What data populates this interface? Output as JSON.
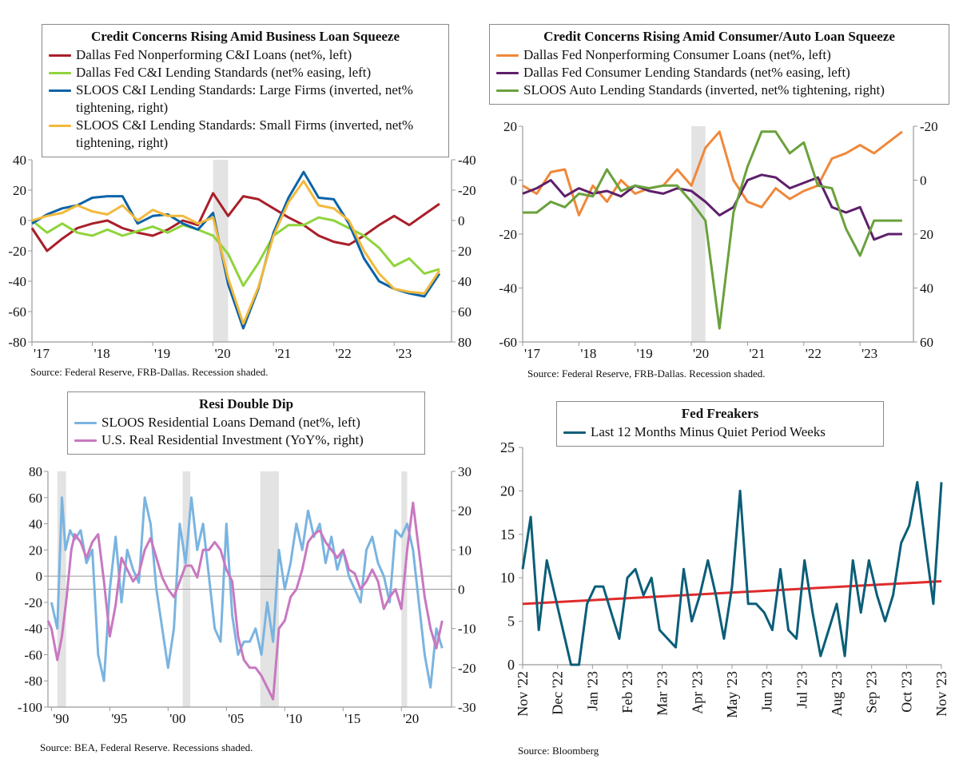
{
  "chart_data": [
    {
      "type": "line",
      "title": "Credit Concerns Rising Amid Business Loan Squeeze",
      "source": "Source: Federal Reserve, FRB-Dallas. Recession shaded.",
      "x_ticks": [
        "'17",
        "'18",
        "'19",
        "'20",
        "'21",
        "'22",
        "'23"
      ],
      "x_range": [
        2017.0,
        2023.95
      ],
      "y_left": {
        "range": [
          -80,
          40
        ],
        "ticks": [
          "40",
          "20",
          "0",
          "-20",
          "-40",
          "-60",
          "-80"
        ]
      },
      "y_right": {
        "range_top_to_bottom": [
          -40,
          80
        ],
        "ticks": [
          "-40",
          "-20",
          "0",
          "20",
          "40",
          "60",
          "80"
        ]
      },
      "recession": [
        [
          2020.0,
          2020.25
        ]
      ],
      "series": [
        {
          "name": "Dallas Fed Nonperforming C&I Loans (net%, left)",
          "axis": "left",
          "color": "#a91f2a",
          "x": [
            2017.0,
            2017.25,
            2017.5,
            2017.75,
            2018.0,
            2018.25,
            2018.5,
            2018.75,
            2019.0,
            2019.25,
            2019.5,
            2019.75,
            2020.0,
            2020.25,
            2020.5,
            2020.75,
            2021.0,
            2021.25,
            2021.5,
            2021.75,
            2022.0,
            2022.25,
            2022.5,
            2022.75,
            2023.0,
            2023.25,
            2023.5,
            2023.75
          ],
          "y": [
            -5,
            -20,
            -12,
            -5,
            -2,
            0,
            -5,
            -8,
            -10,
            -6,
            0,
            -3,
            18,
            3,
            16,
            14,
            8,
            2,
            -3,
            -10,
            -14,
            -16,
            -10,
            -3,
            3,
            -3,
            4,
            11
          ]
        },
        {
          "name": "Dallas Fed C&I Lending Standards (net% easing, left)",
          "axis": "left",
          "color": "#8fd43c",
          "x": [
            2017.0,
            2017.25,
            2017.5,
            2017.75,
            2018.0,
            2018.25,
            2018.5,
            2018.75,
            2019.0,
            2019.25,
            2019.5,
            2019.75,
            2020.0,
            2020.25,
            2020.5,
            2020.75,
            2021.0,
            2021.25,
            2021.5,
            2021.75,
            2022.0,
            2022.25,
            2022.5,
            2022.75,
            2023.0,
            2023.25,
            2023.5,
            2023.75
          ],
          "y": [
            0,
            -8,
            -2,
            -8,
            -10,
            -6,
            -10,
            -7,
            -4,
            -8,
            -3,
            -6,
            -10,
            -22,
            -43,
            -28,
            -10,
            -3,
            -3,
            2,
            0,
            -5,
            -10,
            -18,
            -30,
            -25,
            -35,
            -32
          ]
        },
        {
          "name": "SLOOS C&I Lending Standards: Large Firms (inverted, net% tightening, right)",
          "axis": "right",
          "color": "#0b63a8",
          "x": [
            2017.0,
            2017.25,
            2017.5,
            2017.75,
            2018.0,
            2018.25,
            2018.5,
            2018.75,
            2019.0,
            2019.25,
            2019.5,
            2019.75,
            2020.0,
            2020.25,
            2020.5,
            2020.75,
            2021.0,
            2021.25,
            2021.5,
            2021.75,
            2022.0,
            2022.25,
            2022.5,
            2022.75,
            2023.0,
            2023.25,
            2023.5,
            2023.75
          ],
          "y": [
            2,
            -4,
            -8,
            -10,
            -15,
            -16,
            -16,
            2,
            -3,
            -4,
            2,
            6,
            -5,
            42,
            71,
            45,
            8,
            -15,
            -32,
            -15,
            -14,
            2,
            25,
            40,
            45,
            48,
            50,
            35
          ]
        },
        {
          "name": "SLOOS C&I Lending Standards: Small Firms (inverted, net% tightening, right)",
          "axis": "right",
          "color": "#f2b93b",
          "x": [
            2017.0,
            2017.25,
            2017.5,
            2017.75,
            2018.0,
            2018.25,
            2018.5,
            2018.75,
            2019.0,
            2019.25,
            2019.5,
            2019.75,
            2020.0,
            2020.25,
            2020.5,
            2020.75,
            2021.0,
            2021.25,
            2021.5,
            2021.75,
            2022.0,
            2022.25,
            2022.5,
            2022.75,
            2023.0,
            2023.25,
            2023.5,
            2023.75
          ],
          "y": [
            0,
            -3,
            -5,
            -10,
            -6,
            -4,
            -10,
            0,
            -7,
            -3,
            -3,
            2,
            -2,
            38,
            68,
            44,
            10,
            -12,
            -26,
            -10,
            -8,
            0,
            20,
            35,
            45,
            47,
            48,
            33
          ]
        }
      ]
    },
    {
      "type": "line",
      "title": "Credit Concerns Rising Amid Consumer/Auto Loan Squeeze",
      "source": "Source: Federal Reserve, FRB-Dallas. Recession shaded.",
      "x_ticks": [
        "'17",
        "'18",
        "'19",
        "'20",
        "'21",
        "'22",
        "'23"
      ],
      "x_range": [
        2017.0,
        2023.95
      ],
      "y_left": {
        "range": [
          -60,
          20
        ],
        "ticks": [
          "20",
          "0",
          "-20",
          "-40",
          "-60"
        ]
      },
      "y_right": {
        "range_top_to_bottom": [
          -20,
          60
        ],
        "ticks": [
          "-20",
          "0",
          "20",
          "40",
          "60"
        ]
      },
      "recession": [
        [
          2020.0,
          2020.25
        ]
      ],
      "series": [
        {
          "name": "Dallas Fed Nonperforming Consumer Loans (net%, left)",
          "axis": "left",
          "color": "#f0883a",
          "x": [
            2017.0,
            2017.25,
            2017.5,
            2017.75,
            2018.0,
            2018.25,
            2018.5,
            2018.75,
            2019.0,
            2019.25,
            2019.5,
            2019.75,
            2020.0,
            2020.25,
            2020.5,
            2020.75,
            2021.0,
            2021.25,
            2021.5,
            2021.75,
            2022.0,
            2022.25,
            2022.5,
            2022.75,
            2023.0,
            2023.25,
            2023.5,
            2023.75
          ],
          "y": [
            -2,
            -5,
            3,
            4,
            -13,
            -2,
            -8,
            0,
            -5,
            -3,
            -2,
            4,
            -2,
            12,
            18,
            0,
            -8,
            -10,
            -3,
            -7,
            -4,
            -2,
            8,
            10,
            13,
            10,
            14,
            18
          ]
        },
        {
          "name": "Dallas Fed Consumer Lending Standards (net% easing, left)",
          "axis": "left",
          "color": "#5e1f6b",
          "x": [
            2017.0,
            2017.25,
            2017.5,
            2017.75,
            2018.0,
            2018.25,
            2018.5,
            2018.75,
            2019.0,
            2019.25,
            2019.5,
            2019.75,
            2020.0,
            2020.25,
            2020.5,
            2020.75,
            2021.0,
            2021.25,
            2021.5,
            2021.75,
            2022.0,
            2022.25,
            2022.5,
            2022.75,
            2023.0,
            2023.25,
            2023.5,
            2023.75
          ],
          "y": [
            -5,
            -3,
            0,
            -6,
            -3,
            -5,
            -4,
            -6,
            -2,
            -4,
            -5,
            -3,
            -4,
            -8,
            -13,
            -10,
            0,
            2,
            1,
            -3,
            -1,
            1,
            -10,
            -12,
            -10,
            -22,
            -20,
            -20
          ]
        },
        {
          "name": "SLOOS Auto Lending Standards (inverted, net% tightening, right)",
          "axis": "right",
          "color": "#6aa13c",
          "x": [
            2017.0,
            2017.25,
            2017.5,
            2017.75,
            2018.0,
            2018.25,
            2018.5,
            2018.75,
            2019.0,
            2019.25,
            2019.5,
            2019.75,
            2020.0,
            2020.25,
            2020.5,
            2020.75,
            2021.0,
            2021.25,
            2021.5,
            2021.75,
            2022.0,
            2022.25,
            2022.5,
            2022.75,
            2023.0,
            2023.25,
            2023.5,
            2023.75
          ],
          "y": [
            12,
            12,
            8,
            10,
            5,
            6,
            -4,
            4,
            2,
            3,
            2,
            2,
            8,
            15,
            55,
            12,
            -5,
            -18,
            -18,
            -10,
            -14,
            2,
            3,
            18,
            28,
            15,
            15,
            15
          ]
        }
      ]
    },
    {
      "type": "line",
      "title": "Resi Double Dip",
      "source": "Source: BEA, Federal Reserve. Recessions shaded.",
      "x_ticks": [
        "'90",
        "'95",
        "'00",
        "'05",
        "'10",
        "'15",
        "'20"
      ],
      "x_range": [
        1989.7,
        2024.3
      ],
      "y_left": {
        "range": [
          -100,
          80
        ],
        "ticks": [
          "80",
          "60",
          "40",
          "20",
          "0",
          "-20",
          "-40",
          "-60",
          "-80",
          "-100"
        ]
      },
      "y_right": {
        "range": [
          -30,
          30
        ],
        "ticks": [
          "30",
          "20",
          "10",
          "0",
          "-10",
          "-20",
          "-30"
        ]
      },
      "zero_line_left": 0,
      "zero_line_right": 0,
      "recession": [
        [
          1990.5,
          1991.25
        ],
        [
          2001.25,
          2001.9
        ],
        [
          2007.9,
          2009.5
        ],
        [
          2020.0,
          2020.5
        ]
      ],
      "series": [
        {
          "name": "SLOOS Residential Loans Demand (net%, left)",
          "axis": "left",
          "color": "#7ab4e0",
          "x": [
            1990.0,
            1990.5,
            1990.9,
            1991.2,
            1991.6,
            1992.0,
            1992.5,
            1993.0,
            1993.5,
            1994.0,
            1994.5,
            1995.0,
            1995.5,
            1996.0,
            1996.5,
            1997.0,
            1997.5,
            1998.0,
            1998.5,
            1999.0,
            1999.5,
            2000.0,
            2000.5,
            2001.0,
            2001.5,
            2002.0,
            2002.5,
            2003.0,
            2003.5,
            2004.0,
            2004.5,
            2005.0,
            2005.5,
            2006.0,
            2006.5,
            2007.0,
            2007.5,
            2008.0,
            2008.5,
            2009.0,
            2009.5,
            2010.0,
            2010.5,
            2011.0,
            2011.5,
            2012.0,
            2012.5,
            2013.0,
            2013.5,
            2014.0,
            2014.5,
            2015.0,
            2015.5,
            2016.0,
            2016.5,
            2017.0,
            2017.5,
            2018.0,
            2018.5,
            2019.0,
            2019.5,
            2020.0,
            2020.5,
            2021.0,
            2021.5,
            2022.0,
            2022.5,
            2023.0,
            2023.5
          ],
          "y": [
            -20,
            -40,
            60,
            20,
            35,
            28,
            35,
            10,
            20,
            -60,
            -80,
            -10,
            30,
            -20,
            20,
            5,
            -5,
            60,
            40,
            -10,
            -40,
            -70,
            -40,
            40,
            10,
            60,
            20,
            40,
            0,
            -40,
            -50,
            40,
            -30,
            -60,
            -50,
            -50,
            -40,
            -60,
            -20,
            -50,
            20,
            -10,
            10,
            40,
            20,
            50,
            30,
            40,
            10,
            30,
            5,
            20,
            0,
            -10,
            -20,
            20,
            30,
            10,
            0,
            -20,
            35,
            30,
            40,
            20,
            -20,
            -60,
            -85,
            -40,
            -55
          ]
        },
        {
          "name": "U.S. Real Residential Investment (YoY%, right)",
          "axis": "right",
          "color": "#c878c0",
          "x": [
            1989.7,
            1990.0,
            1990.5,
            1990.9,
            1991.3,
            1991.7,
            1992.0,
            1992.5,
            1993.0,
            1993.5,
            1994.0,
            1994.5,
            1995.0,
            1995.5,
            1996.0,
            1996.5,
            1997.0,
            1997.5,
            1998.0,
            1998.5,
            1999.0,
            1999.5,
            2000.0,
            2000.5,
            2001.0,
            2001.5,
            2002.0,
            2002.5,
            2003.0,
            2003.5,
            2004.0,
            2004.5,
            2005.0,
            2005.5,
            2006.0,
            2006.5,
            2007.0,
            2007.5,
            2008.0,
            2008.5,
            2009.0,
            2009.5,
            2010.0,
            2010.5,
            2011.0,
            2011.5,
            2012.0,
            2012.5,
            2013.0,
            2013.5,
            2014.0,
            2014.5,
            2015.0,
            2015.5,
            2016.0,
            2016.5,
            2017.0,
            2017.5,
            2018.0,
            2018.5,
            2019.0,
            2019.5,
            2020.0,
            2020.5,
            2021.0,
            2021.5,
            2022.0,
            2022.5,
            2023.0,
            2023.5
          ],
          "y": [
            -8,
            -10,
            -18,
            -12,
            -2,
            10,
            14,
            12,
            8,
            12,
            14,
            2,
            -12,
            -4,
            8,
            5,
            2,
            4,
            10,
            13,
            8,
            3,
            0,
            -2,
            2,
            6,
            6,
            3,
            10,
            10,
            12,
            10,
            5,
            2,
            -12,
            -18,
            -20,
            -20,
            -22,
            -25,
            -28,
            -10,
            -8,
            -2,
            0,
            5,
            12,
            14,
            15,
            12,
            10,
            8,
            10,
            5,
            4,
            0,
            2,
            5,
            2,
            -5,
            -2,
            0,
            -5,
            10,
            22,
            10,
            -2,
            -10,
            -15,
            -8
          ]
        }
      ]
    },
    {
      "type": "line",
      "title": "Fed Freakers",
      "source": "Source: Bloomberg",
      "x_ticks": [
        "Nov '22",
        "Dec '22",
        "Jan '23",
        "Feb '23",
        "Mar '23",
        "Apr '23",
        "May '23",
        "Jun '23",
        "Jul '23",
        "Aug '23",
        "Sep '23",
        "Oct '23",
        "Nov '23"
      ],
      "y_left": {
        "range": [
          0,
          25
        ],
        "ticks": [
          "25",
          "20",
          "15",
          "10",
          "5",
          "0"
        ]
      },
      "trend_line": {
        "color": "#e02b2b",
        "start": 7.0,
        "end": 9.6
      },
      "series": [
        {
          "name": "Last 12 Months Minus Quiet Period Weeks",
          "axis": "left",
          "color": "#0b5e78",
          "y": [
            11,
            17,
            4,
            12,
            8,
            4,
            0,
            0,
            7,
            9,
            9,
            6,
            3,
            10,
            11,
            8,
            10,
            4,
            3,
            2,
            11,
            5,
            8,
            12,
            8,
            3,
            9,
            20,
            7,
            7,
            6,
            4,
            11,
            4,
            3,
            12,
            6,
            1,
            4,
            7,
            1,
            12,
            6,
            12,
            8,
            5,
            8,
            14,
            16,
            21,
            14,
            7,
            21
          ]
        }
      ]
    }
  ]
}
